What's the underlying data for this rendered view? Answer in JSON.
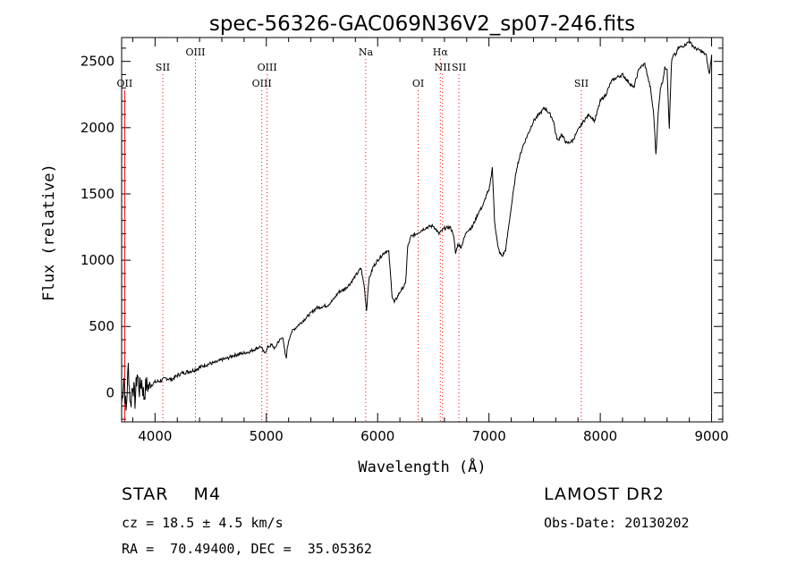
{
  "chart_data": {
    "type": "line",
    "title": "spec-56326-GAC069N36V2_sp07-246.fits",
    "xlabel": "Wavelength (Å)",
    "ylabel": "Flux (relative)",
    "xlim": [
      3700,
      9100
    ],
    "ylim": [
      -220,
      2680
    ],
    "x_ticks": [
      4000,
      5000,
      6000,
      7000,
      8000,
      9000
    ],
    "y_ticks": [
      0,
      500,
      1000,
      1500,
      2000,
      2500
    ],
    "grid": false,
    "line_color": "#000000",
    "marker_color": "#ff0000",
    "series": [
      {
        "x": [
          3700,
          3720,
          3740,
          3760,
          3780,
          3800,
          3820,
          3840,
          3860,
          3880,
          3900,
          3920,
          3950,
          3980,
          4000,
          4050,
          4100,
          4150,
          4200,
          4250,
          4300,
          4350,
          4400,
          4450,
          4500,
          4550,
          4600,
          4650,
          4700,
          4750,
          4800,
          4850,
          4900,
          4950,
          4980,
          5000,
          5020,
          5050,
          5080,
          5100,
          5150,
          5170,
          5180,
          5190,
          5220,
          5250,
          5300,
          5350,
          5400,
          5450,
          5500,
          5550,
          5600,
          5650,
          5700,
          5750,
          5800,
          5850,
          5880,
          5900,
          5920,
          5960,
          6000,
          6050,
          6080,
          6100,
          6130,
          6150,
          6200,
          6250,
          6270,
          6300,
          6350,
          6400,
          6450,
          6500,
          6550,
          6600,
          6650,
          6680,
          6700,
          6720,
          6750,
          6800,
          6850,
          6900,
          6950,
          6980,
          7000,
          7030,
          7050,
          7080,
          7100,
          7120,
          7150,
          7200,
          7250,
          7300,
          7350,
          7400,
          7450,
          7500,
          7550,
          7580,
          7600,
          7620,
          7650,
          7700,
          7750,
          7800,
          7850,
          7900,
          7950,
          8000,
          8050,
          8100,
          8150,
          8200,
          8250,
          8300,
          8350,
          8400,
          8450,
          8480,
          8500,
          8520,
          8540,
          8560,
          8580,
          8600,
          8620,
          8640,
          8660,
          8680,
          8700,
          8750,
          8800,
          8850,
          8900,
          8950,
          8980,
          9000
        ],
        "y": [
          -80,
          120,
          -150,
          200,
          -100,
          80,
          -60,
          150,
          20,
          90,
          -30,
          60,
          40,
          70,
          80,
          90,
          110,
          100,
          130,
          150,
          160,
          170,
          190,
          210,
          220,
          230,
          250,
          260,
          280,
          290,
          300,
          310,
          330,
          350,
          300,
          320,
          350,
          360,
          330,
          380,
          420,
          280,
          260,
          350,
          450,
          480,
          520,
          560,
          600,
          640,
          650,
          660,
          700,
          760,
          780,
          820,
          880,
          940,
          800,
          620,
          850,
          950,
          1000,
          1050,
          1070,
          1060,
          730,
          680,
          760,
          820,
          1100,
          1180,
          1200,
          1230,
          1250,
          1260,
          1200,
          1240,
          1250,
          1200,
          1050,
          1120,
          1100,
          1220,
          1250,
          1350,
          1420,
          1500,
          1520,
          1700,
          1300,
          1100,
          1050,
          1030,
          1080,
          1400,
          1700,
          1850,
          1950,
          2050,
          2100,
          2150,
          2100,
          2050,
          1950,
          1900,
          1950,
          1880,
          1900,
          1980,
          2050,
          2100,
          2050,
          2200,
          2250,
          2350,
          2380,
          2400,
          2350,
          2300,
          2450,
          2480,
          2300,
          2100,
          1800,
          2100,
          2300,
          2350,
          2450,
          2450,
          2000,
          2500,
          2550,
          2550,
          2600,
          2620,
          2650,
          2600,
          2580,
          2550,
          2400,
          2550
        ]
      }
    ],
    "lines": [
      {
        "label": "OII",
        "x": 3727,
        "row": 3,
        "dotted": false
      },
      {
        "label": "SII",
        "x": 4070,
        "row": 2,
        "dotted": true
      },
      {
        "label": "OIII",
        "x": 4363,
        "row": 1,
        "dotted": true
      },
      {
        "label": "OIII",
        "x": 4959,
        "row": 3,
        "dotted": true
      },
      {
        "label": "OIII",
        "x": 5007,
        "row": 2,
        "dotted": true
      },
      {
        "label": "Na",
        "x": 5893,
        "row": 1,
        "dotted": true
      },
      {
        "label": "OI",
        "x": 6364,
        "row": 3,
        "dotted": true
      },
      {
        "label": "Hα",
        "x": 6563,
        "row": 1,
        "dotted": true
      },
      {
        "label": "NII",
        "x": 6583,
        "row": 2,
        "dotted": true
      },
      {
        "label": "SII",
        "x": 6730,
        "row": 2,
        "dotted": true
      },
      {
        "label": "SII",
        "x": 7830,
        "row": 3,
        "dotted": true
      }
    ]
  },
  "info": {
    "classification": "STAR    M4",
    "survey": "LAMOST DR2",
    "redshift": "cz = 18.5 ± 4.5 km/s",
    "obs_date": "Obs-Date: 20130202",
    "coords": "RA =  70.49400, DEC =  35.05362"
  }
}
